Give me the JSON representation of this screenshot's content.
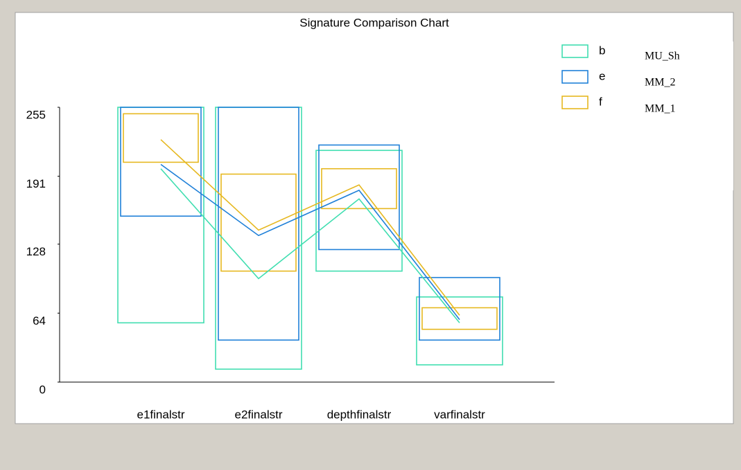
{
  "chart_data": {
    "type": "box",
    "title": "Signature Comparison Chart",
    "categories": [
      "e1finalstr",
      "e2finalstr",
      "depthfinalstr",
      "varfinalstr"
    ],
    "ylim": [
      0,
      255
    ],
    "yticks": [
      0,
      64,
      128,
      191,
      255
    ],
    "grid": false,
    "series": [
      {
        "name": "b",
        "description": "MU_Sh",
        "color": "#40deb0",
        "values": [
          198,
          96,
          170,
          55
        ],
        "min": [
          55,
          12,
          103,
          16
        ],
        "max": [
          255,
          255,
          215,
          79
        ]
      },
      {
        "name": "e",
        "description": "MM_2",
        "color": "#1f80d8",
        "values": [
          202,
          136,
          178,
          58
        ],
        "min": [
          154,
          39,
          123,
          39
        ],
        "max": [
          255,
          255,
          220,
          97
        ]
      },
      {
        "name": "f",
        "description": "MM_1",
        "color": "#e6b820",
        "values": [
          225,
          141,
          183,
          62
        ],
        "min": [
          204,
          103,
          161,
          49
        ],
        "max": [
          249,
          193,
          198,
          69
        ]
      }
    ]
  }
}
